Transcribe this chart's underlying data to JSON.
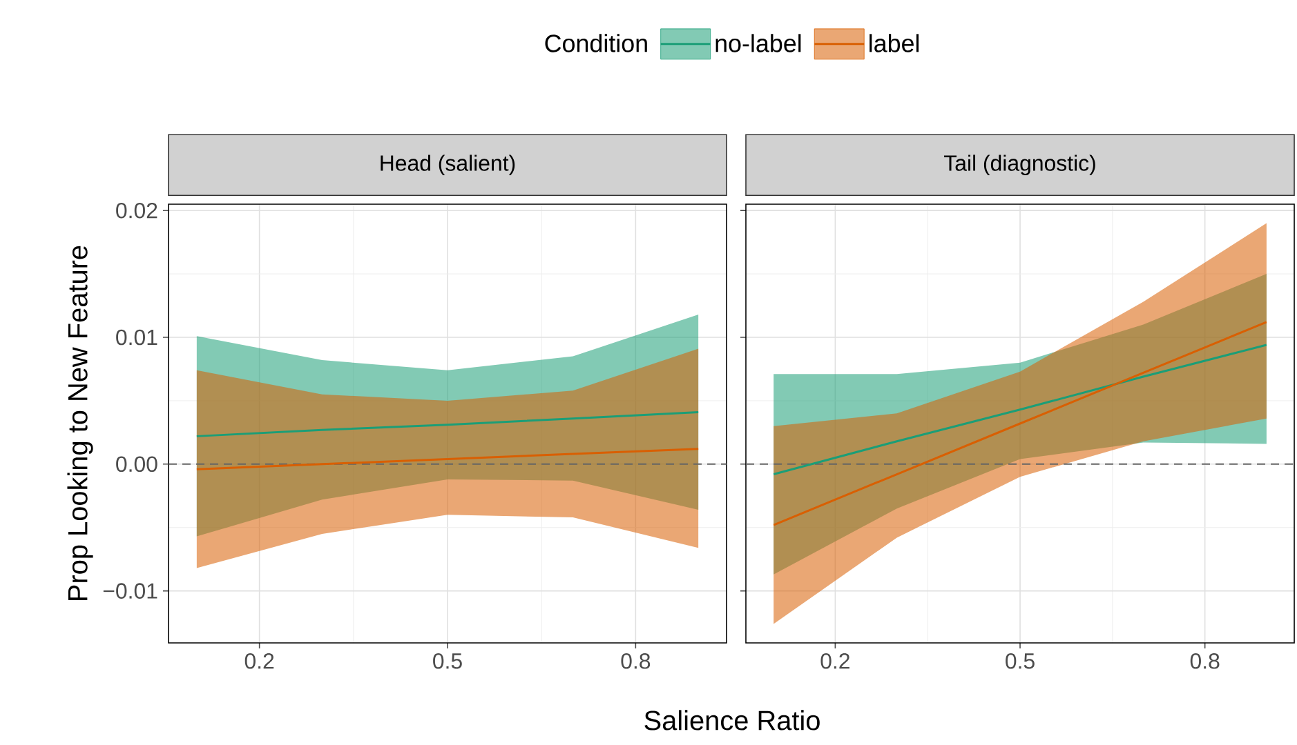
{
  "chart_data": [
    {
      "type": "line",
      "title": "Head (salient)",
      "xlabel": "Salience Ratio",
      "ylabel": "Prop Looking to New Feature",
      "xlim": [
        0.055,
        0.945
      ],
      "ylim": [
        -0.0141,
        0.0205
      ],
      "xticks": [
        0.2,
        0.5,
        0.8
      ],
      "yticks": [
        {
          "value": -0.01,
          "label": "−0.01"
        },
        {
          "value": 0,
          "label": "0.00"
        },
        {
          "value": 0.01,
          "label": "0.01"
        },
        {
          "value": 0.02,
          "label": "0.02"
        }
      ],
      "grid": true,
      "legend": "top",
      "legend_title": "Condition",
      "ref_lines": [
        {
          "axis": "y",
          "value": 0,
          "color": "#666666",
          "line_style": "dashed"
        }
      ],
      "series": [
        {
          "name": "no-label",
          "color": "#1b9e77",
          "x": [
            0.1,
            0.3,
            0.5,
            0.7,
            0.9
          ],
          "values": [
            0.0022,
            0.0027,
            0.0031,
            0.0036,
            0.0041
          ],
          "upper": [
            0.0101,
            0.0082,
            0.0074,
            0.0085,
            0.0118
          ],
          "lower": [
            -0.0057,
            -0.0028,
            -0.0012,
            -0.0013,
            -0.0036
          ]
        },
        {
          "name": "label",
          "color": "#d95f02",
          "x": [
            0.1,
            0.3,
            0.5,
            0.7,
            0.9
          ],
          "values": [
            -0.0004,
            0.0,
            0.0004,
            0.0008,
            0.0012
          ],
          "upper": [
            0.0074,
            0.0055,
            0.005,
            0.0058,
            0.0091
          ],
          "lower": [
            -0.0082,
            -0.0055,
            -0.004,
            -0.0042,
            -0.0066
          ]
        }
      ]
    },
    {
      "type": "line",
      "title": "Tail (diagnostic)",
      "xlim": [
        0.055,
        0.945
      ],
      "ylim": [
        -0.0141,
        0.0205
      ],
      "xticks": [
        0.2,
        0.5,
        0.8
      ],
      "yticks": [
        {
          "value": -0.01,
          "label": null
        },
        {
          "value": 0,
          "label": null
        },
        {
          "value": 0.01,
          "label": null
        },
        {
          "value": 0.02,
          "label": null
        }
      ],
      "grid": true,
      "tick_labels": "x",
      "ref_lines": [
        {
          "axis": "y",
          "value": 0,
          "color": "#666666",
          "line_style": "dashed"
        }
      ],
      "series": [
        {
          "color": "#1b9e77",
          "x": [
            0.1,
            0.3,
            0.5,
            0.7,
            0.9
          ],
          "values": [
            -0.0008,
            0.0018,
            0.0043,
            0.0069,
            0.0094
          ],
          "upper": [
            0.0071,
            0.0071,
            0.008,
            0.011,
            0.015
          ],
          "lower": [
            -0.0087,
            -0.0035,
            0.0004,
            0.0017,
            0.0016
          ]
        },
        {
          "color": "#d95f02",
          "x": [
            0.1,
            0.3,
            0.5,
            0.7,
            0.9
          ],
          "values": [
            -0.0048,
            -0.0008,
            0.0032,
            0.0072,
            0.0112
          ],
          "upper": [
            0.003,
            0.004,
            0.0073,
            0.0128,
            0.019
          ],
          "lower": [
            -0.0126,
            -0.0058,
            -0.001,
            0.0018,
            0.0036
          ]
        }
      ]
    }
  ]
}
